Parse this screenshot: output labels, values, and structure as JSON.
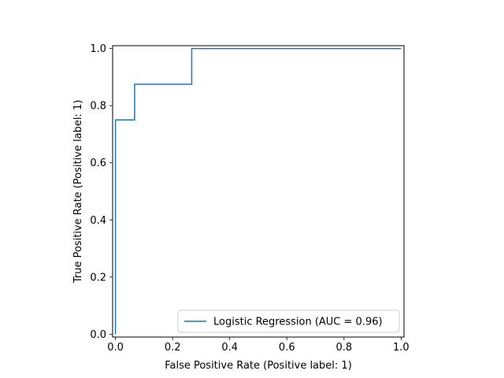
{
  "chart_data": {
    "type": "line",
    "title": "",
    "xlabel": "False Positive Rate (Positive label: 1)",
    "ylabel": "True Positive Rate (Positive label: 1)",
    "xlim": [
      -0.01,
      1.01
    ],
    "ylim": [
      -0.01,
      1.01
    ],
    "xticks": [
      "0.0",
      "0.2",
      "0.4",
      "0.6",
      "0.8",
      "1.0"
    ],
    "yticks": [
      "0.0",
      "0.2",
      "0.4",
      "0.6",
      "0.8",
      "1.0"
    ],
    "grid": false,
    "legend_position": "lower-right",
    "series": [
      {
        "name": "Logistic Regression (AUC = 0.96)",
        "color": "#1f77b4",
        "x": [
          0.0,
          0.0,
          0.0,
          0.067,
          0.067,
          0.267,
          0.267,
          1.0
        ],
        "y": [
          0.0,
          0.75,
          0.75,
          0.75,
          0.875,
          0.875,
          1.0,
          1.0
        ]
      }
    ]
  }
}
